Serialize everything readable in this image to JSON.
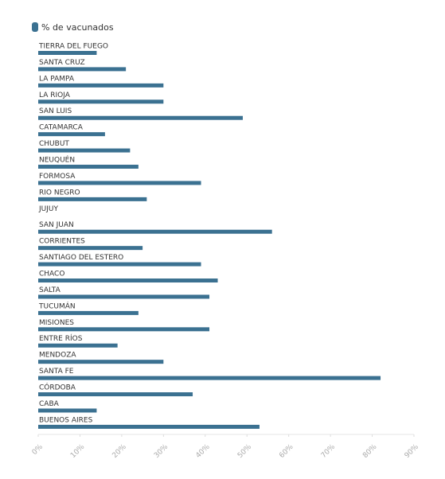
{
  "chart_data": {
    "type": "hbar",
    "series": [
      {
        "name": "% de vacunados",
        "color": "#3b7191",
        "values": [
          14,
          21,
          30,
          30,
          49,
          16,
          22,
          24,
          39,
          26,
          null,
          56,
          25,
          39,
          43,
          41,
          24,
          41,
          19,
          30,
          82,
          37,
          14,
          53
        ]
      }
    ],
    "categories": [
      "TIERRA DEL FUEGO",
      "SANTA CRUZ",
      "LA PAMPA",
      "LA RIOJA",
      "SAN LUIS",
      "CATAMARCA",
      "CHUBUT",
      "NEUQUÉN",
      "FORMOSA",
      "RIO NEGRO",
      "JUJUY",
      "SAN JUAN",
      "CORRIENTES",
      "SANTIAGO DEL ESTERO",
      "CHACO",
      "SALTA",
      "TUCUMÁN",
      "MISIONES",
      "ENTRE RÍOS",
      "MENDOZA",
      "SANTA FE",
      "CÓRDOBA",
      "CABA",
      "BUENOS AIRES"
    ],
    "xlim": [
      0,
      90
    ],
    "xticks": [
      {
        "value": 0,
        "label": "0%"
      },
      {
        "value": 10,
        "label": "10%"
      },
      {
        "value": 20,
        "label": "20%"
      },
      {
        "value": 30,
        "label": "30%"
      },
      {
        "value": 40,
        "label": "40%"
      },
      {
        "value": 50,
        "label": "50%"
      },
      {
        "value": 60,
        "label": "60%"
      },
      {
        "value": 70,
        "label": "70%"
      },
      {
        "value": 80,
        "label": "80%"
      },
      {
        "value": 90,
        "label": "90%"
      }
    ]
  }
}
